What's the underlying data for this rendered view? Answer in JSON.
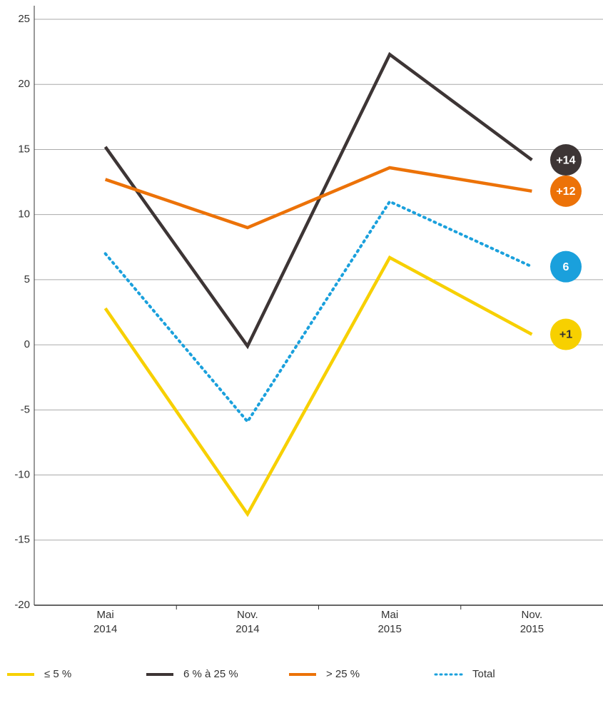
{
  "chart_data": {
    "type": "line",
    "categories": [
      "Mai\n2014",
      "Nov.\n2014",
      "Mai\n2015",
      "Nov.\n2015"
    ],
    "series": [
      {
        "name": "≤ 5 %",
        "color": "#f7d000",
        "values": [
          2.8,
          -13,
          6.7,
          0.8
        ],
        "value_labels": [
          null,
          null,
          null,
          "+1"
        ],
        "text_color": "#333"
      },
      {
        "name": "6 % à 25 %",
        "color": "#3d3535",
        "values": [
          15.2,
          -0.1,
          22.3,
          14.2
        ],
        "value_labels": [
          null,
          null,
          null,
          "+14"
        ],
        "text_color": "#fff"
      },
      {
        "name": "> 25 %",
        "color": "#ec7208",
        "values": [
          12.7,
          9,
          13.6,
          11.8
        ],
        "value_labels": [
          null,
          null,
          null,
          "+12"
        ],
        "text_color": "#fff"
      },
      {
        "name": "Total",
        "color": "#1aa0dc",
        "dashed": true,
        "values": [
          7,
          -5.9,
          11,
          6
        ],
        "value_labels": [
          null,
          null,
          null,
          "6"
        ],
        "text_color": "#fff"
      }
    ],
    "ylim": [
      -20,
      25
    ],
    "yticks": [
      -20,
      -15,
      -10,
      -5,
      0,
      5,
      10,
      15,
      20,
      25
    ],
    "grid": true
  }
}
